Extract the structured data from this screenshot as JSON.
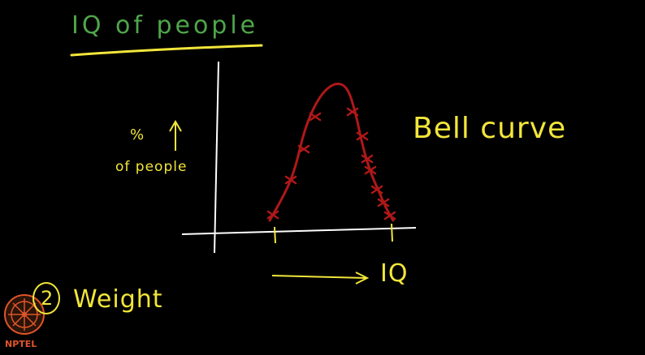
{
  "title": "IQ of people",
  "y_axis": {
    "symbol": "%",
    "label": "of people"
  },
  "curve_label": "Bell curve",
  "x_axis": {
    "label": "IQ"
  },
  "question": {
    "number": "2",
    "text": "Weight"
  },
  "logo": {
    "text": "NPTEL"
  },
  "colors": {
    "title": "#4fa64a",
    "annotation": "#f2e63a",
    "axes": "#ffffff",
    "curve": "#b01818",
    "logo": "#e0542a"
  }
}
